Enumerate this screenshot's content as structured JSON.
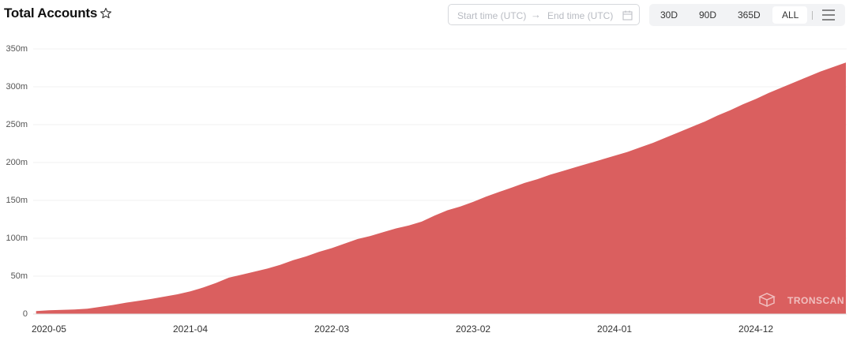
{
  "header": {
    "title": "Total Accounts",
    "start_time": "Start time (UTC)",
    "end_time": "End time (UTC)",
    "ranges": [
      "30D",
      "90D",
      "365D",
      "ALL"
    ],
    "active_range": 3
  },
  "chart_data": {
    "type": "area",
    "color": "#da5f5f",
    "grid": true,
    "watermark": "TRONSCAN",
    "categories": [
      null,
      "2020-05",
      null,
      null,
      null,
      null,
      null,
      null,
      null,
      null,
      null,
      null,
      "2021-04",
      null,
      null,
      null,
      null,
      null,
      null,
      null,
      null,
      null,
      null,
      "2022-03",
      null,
      null,
      null,
      null,
      null,
      null,
      null,
      null,
      null,
      null,
      "2023-02",
      null,
      null,
      null,
      null,
      null,
      null,
      null,
      null,
      null,
      null,
      "2024-01",
      null,
      null,
      null,
      null,
      null,
      null,
      null,
      null,
      null,
      null,
      "2024-12",
      null,
      null,
      null,
      null,
      null,
      null,
      null
    ],
    "values": [
      4000000,
      5000000,
      5500000,
      6000000,
      7000000,
      9500000,
      12000000,
      15000000,
      17500000,
      20000000,
      23000000,
      26000000,
      30000000,
      35000000,
      41000000,
      48000000,
      52000000,
      56000000,
      60000000,
      65000000,
      71000000,
      76000000,
      82000000,
      87000000,
      93000000,
      99000000,
      103000000,
      108000000,
      113000000,
      117000000,
      122000000,
      130000000,
      137000000,
      142000000,
      148000000,
      155000000,
      161000000,
      167000000,
      173000000,
      178000000,
      184000000,
      189000000,
      194000000,
      199000000,
      204000000,
      209000000,
      214000000,
      220000000,
      226000000,
      233000000,
      240000000,
      247000000,
      254000000,
      262000000,
      269000000,
      277000000,
      284000000,
      292000000,
      299000000,
      306000000,
      313000000,
      320000000,
      326000000,
      332000000
    ],
    "ylim": [
      0,
      350000000
    ],
    "yticks": [
      0,
      {
        "value": 50000000,
        "label": "50m"
      },
      {
        "value": 100000000,
        "label": "100m"
      },
      {
        "value": 150000000,
        "label": "150m"
      },
      {
        "value": 200000000,
        "label": "200m"
      },
      {
        "value": 250000000,
        "label": "250m"
      },
      {
        "value": 300000000,
        "label": "300m"
      },
      {
        "value": 350000000,
        "label": "350m"
      }
    ]
  }
}
